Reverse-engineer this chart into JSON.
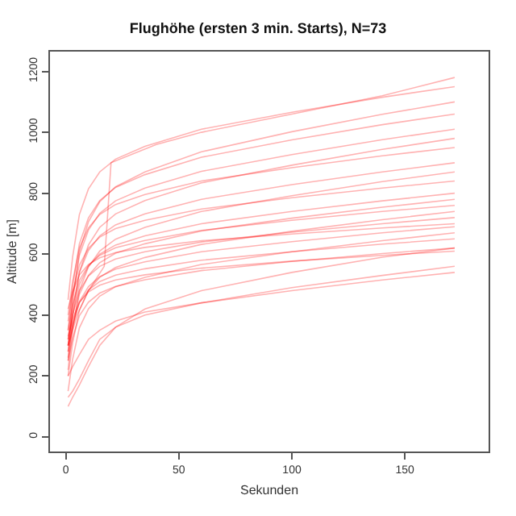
{
  "chart_data": {
    "type": "line",
    "title": "Flughöhe (ersten 3 min. Starts), N=73",
    "xlabel": "Sekunden",
    "ylabel": "Altitude [m]",
    "color": "#ff0000",
    "line_style": "solid",
    "marker": "none",
    "grid": false,
    "xlim": [
      -7,
      187
    ],
    "xticks": [
      0,
      50,
      100,
      150
    ],
    "ylim": [
      -48,
      1265
    ],
    "yticks": [
      0,
      200,
      400,
      600,
      800,
      1000,
      1200
    ],
    "x": [
      1,
      3,
      6,
      10,
      15,
      22,
      35,
      60,
      100,
      140,
      172
    ],
    "series": [
      {
        "x": [
          1,
          5,
          10,
          17,
          20,
          40,
          60,
          100,
          140,
          172
        ],
        "values": [
          300,
          400,
          480,
          560,
          900,
          960,
          1000,
          1060,
          1120,
          1180
        ]
      },
      {
        "values": [
          450,
          590,
          730,
          814,
          870,
          912,
          954,
          1010,
          1066,
          1115,
          1150
        ]
      },
      {
        "values": [
          280,
          444,
          608,
          706,
          772,
          821,
          870,
          936,
          1002,
          1059,
          1100
        ]
      },
      {
        "values": [
          350,
          492,
          634,
          719,
          776,
          819,
          861,
          918,
          975,
          1025,
          1060
        ]
      },
      {
        "values": [
          320,
          458,
          596,
          679,
          734,
          775,
          817,
          872,
          927,
          976,
          1010
        ]
      },
      {
        "values": [
          250,
          396,
          542,
          630,
          688,
          732,
          776,
          834,
          892,
          944,
          980
        ]
      },
      {
        "values": [
          400,
          510,
          620,
          686,
          730,
          763,
          796,
          840,
          884,
          923,
          950
        ]
      },
      {
        "values": [
          300,
          420,
          540,
          612,
          660,
          696,
          732,
          780,
          828,
          870,
          900
        ]
      },
      {
        "values": [
          220,
          350,
          480,
          558,
          610,
          649,
          688,
          740,
          792,
          838,
          870
        ]
      },
      {
        "values": [
          380,
          472,
          564,
          619,
          656,
          684,
          711,
          748,
          785,
          817,
          840
        ]
      },
      {
        "values": [
          300,
          400,
          500,
          560,
          600,
          630,
          660,
          700,
          740,
          775,
          800
        ]
      },
      {
        "values": [
          260,
          364,
          468,
          530,
          572,
          603,
          634,
          676,
          718,
          754,
          780
        ]
      },
      {
        "values": [
          350,
          432,
          514,
          563,
          596,
          621,
          645,
          678,
          711,
          740,
          760
        ]
      },
      {
        "values": [
          200,
          308,
          416,
          481,
          524,
          556,
          589,
          632,
          675,
          713,
          740
        ]
      },
      {
        "values": [
          320,
          400,
          480,
          528,
          560,
          584,
          608,
          640,
          672,
          700,
          720
        ]
      },
      {
        "values": [
          420,
          476,
          532,
          566,
          588,
          605,
          622,
          644,
          666,
          686,
          700
        ]
      },
      {
        "values": [
          280,
          362,
          444,
          493,
          526,
          551,
          575,
          608,
          641,
          670,
          690
        ]
      },
      {
        "values": [
          150,
          254,
          358,
          420,
          462,
          493,
          524,
          566,
          608,
          644,
          670
        ]
      },
      {
        "values": [
          300,
          370,
          440,
          482,
          510,
          531,
          552,
          580,
          608,
          633,
          650
        ]
      },
      {
        "values": [
          250,
          324,
          398,
          442,
          472,
          494,
          516,
          546,
          576,
          602,
          620
        ]
      },
      {
        "values": [
          330,
          386,
          442,
          476,
          498,
          515,
          532,
          554,
          577,
          596,
          610
        ]
      },
      {
        "values": [
          100,
          130,
          170,
          230,
          300,
          360,
          420,
          480,
          540,
          590,
          620
        ]
      },
      {
        "values": [
          130,
          150,
          190,
          250,
          320,
          360,
          400,
          440,
          490,
          530,
          560
        ]
      },
      {
        "values": [
          200,
          230,
          270,
          320,
          350,
          380,
          410,
          440,
          480,
          515,
          540
        ]
      }
    ]
  }
}
